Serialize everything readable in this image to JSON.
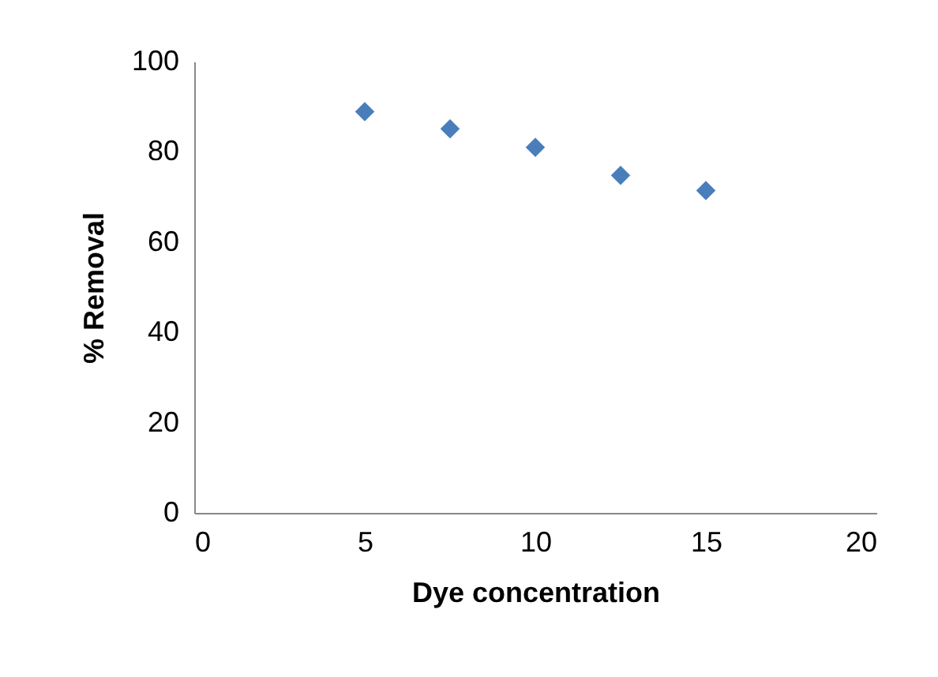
{
  "chart_data": {
    "type": "scatter",
    "xlabel": "Dye concentration",
    "ylabel": "% Removal",
    "x": [
      5,
      7.5,
      10,
      12.5,
      15
    ],
    "series": [
      {
        "color": "#4a7ebb",
        "values": [
          88.9,
          85.1,
          81.0,
          74.8,
          71.4
        ]
      }
    ],
    "xlim": [
      0,
      20
    ],
    "xticks": [
      0,
      5,
      10,
      15,
      20
    ],
    "ylim": [
      0,
      100
    ],
    "yticks": [
      0,
      20,
      40,
      60,
      80,
      100
    ],
    "marker": "diamond",
    "grid": false
  }
}
